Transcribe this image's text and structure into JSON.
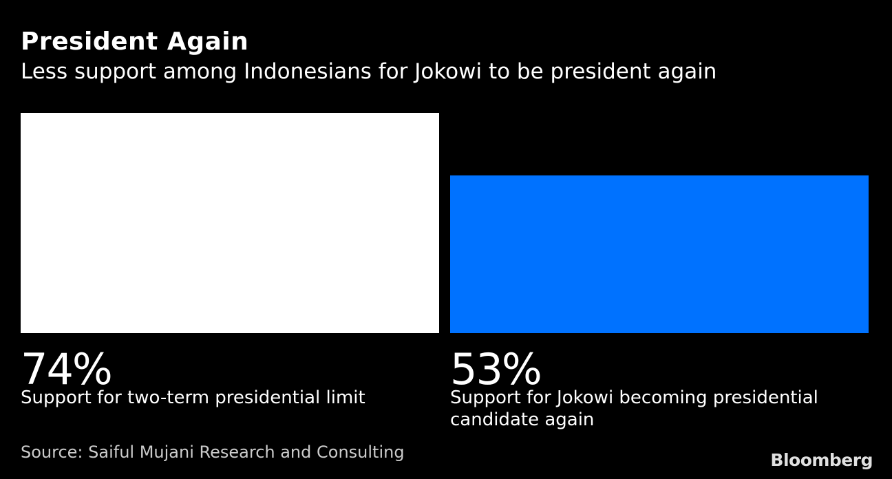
{
  "chart_data": {
    "type": "bar",
    "title": "President Again",
    "subtitle": "Less support among Indonesians for Jokowi to be president again",
    "categories": [
      "Support for two-term presidential limit",
      "Support for Jokowi becoming presidential candidate again"
    ],
    "values": [
      74,
      53
    ],
    "value_labels": [
      "74%",
      "53%"
    ],
    "bar_colors": [
      "#ffffff",
      "#0072ff"
    ],
    "ylim": [
      0,
      74
    ],
    "grid": false,
    "legend": "none",
    "xlabel": "",
    "ylabel": ""
  },
  "footer": {
    "source": "Source: Saiful Mujani Research and Consulting",
    "brand": "Bloomberg"
  }
}
